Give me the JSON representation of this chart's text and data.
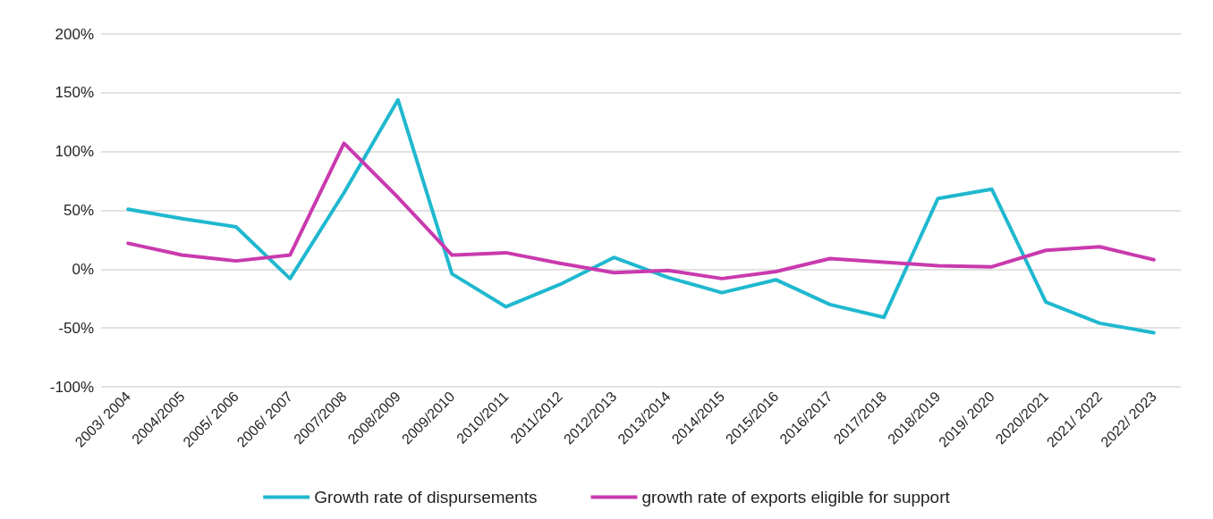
{
  "chart_data": {
    "type": "line",
    "categories": [
      "2003/ 2004",
      "2004/2005",
      "2005/ 2006",
      "2006/ 2007",
      "2007/2008",
      "2008/2009",
      "2009/2010",
      "2010/2011",
      "2011/2012",
      "2012/2013",
      "2013/2014",
      "2014/2015",
      "2015/2016",
      "2016/2017",
      "2017/2018",
      "2018/2019",
      "2019/ 2020",
      "2020/2021",
      "2021/ 2022",
      "2022/ 2023"
    ],
    "series": [
      {
        "name": "Growth rate of dispursements",
        "color": "#1fb8cf",
        "values": [
          51,
          43,
          36,
          -8,
          65,
          144,
          -4,
          -32,
          -13,
          10,
          -7,
          -20,
          -9,
          -30,
          -41,
          60,
          68,
          -28,
          -46,
          -54
        ]
      },
      {
        "name": "growth rate of exports eligible for support",
        "color": "#c93aae",
        "values": [
          22,
          12,
          7,
          12,
          107,
          61,
          12,
          14,
          5,
          -3,
          -1,
          -8,
          -2,
          9,
          6,
          3,
          2,
          16,
          19,
          8
        ]
      }
    ],
    "ylim": [
      -100,
      200
    ],
    "yticks": [
      {
        "value": -100,
        "label": "-100%"
      },
      {
        "value": -50,
        "label": "-50%"
      },
      {
        "value": 0,
        "label": "0%"
      },
      {
        "value": 50,
        "label": "50%"
      },
      {
        "value": 100,
        "label": "100%"
      },
      {
        "value": 150,
        "label": "150%"
      },
      {
        "value": 200,
        "label": "200%"
      }
    ],
    "grid": "y",
    "legend": "bottom",
    "marker": "none",
    "line_style": "solid"
  }
}
